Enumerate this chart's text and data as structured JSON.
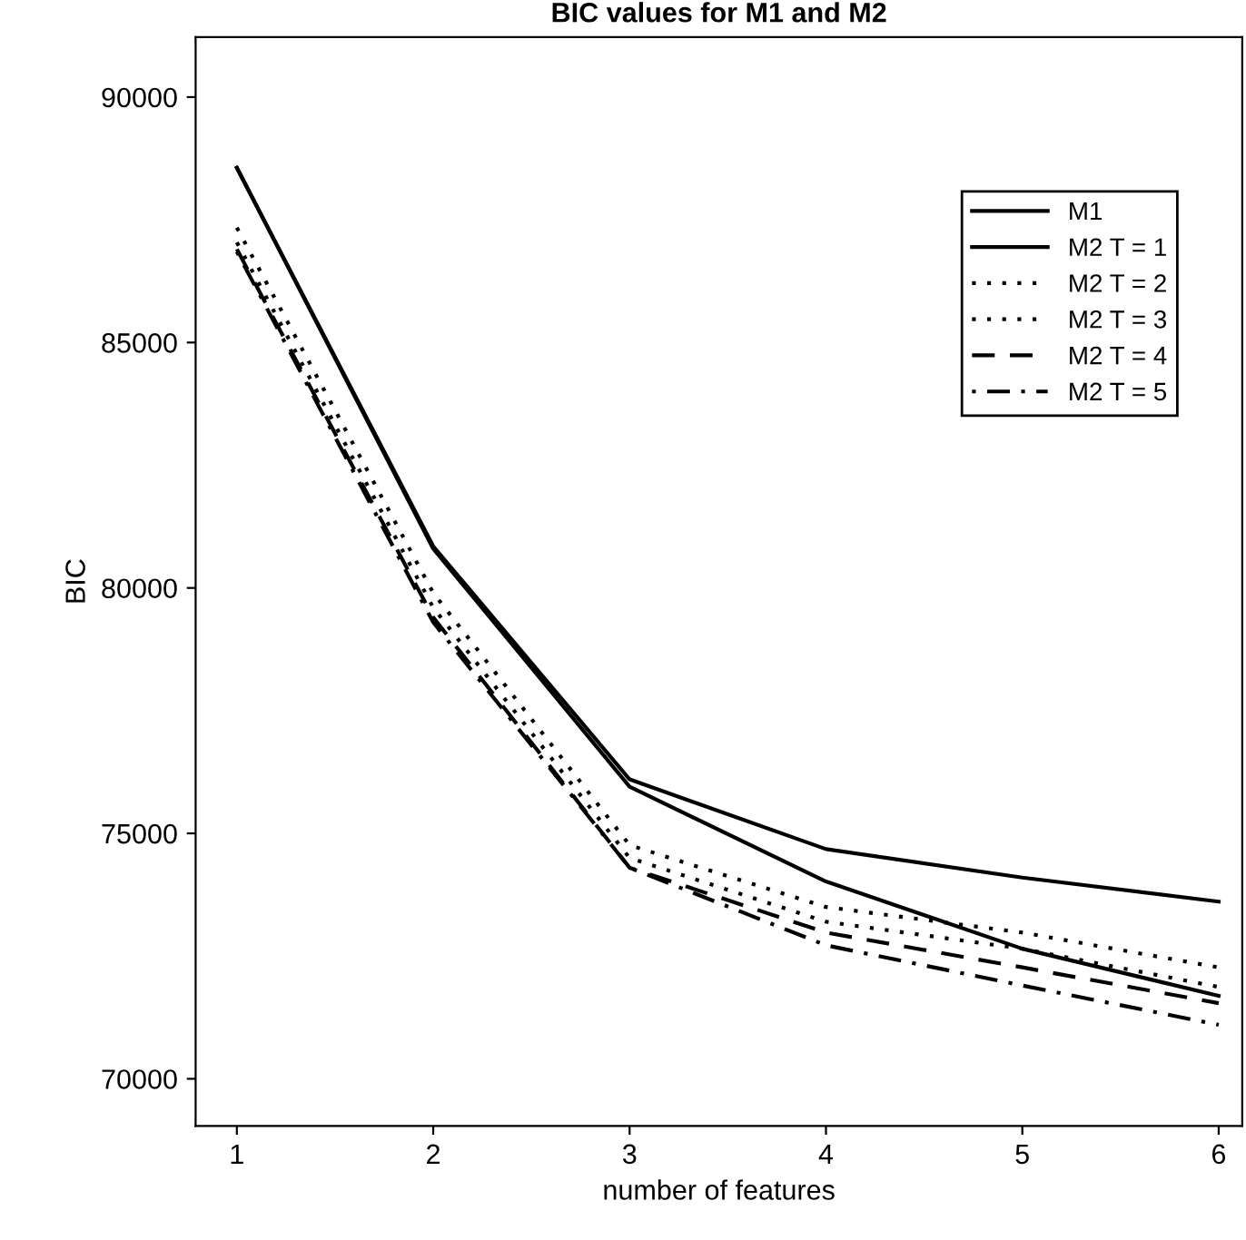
{
  "chart_data": {
    "type": "line",
    "title": "BIC values for M1 and M2",
    "xlabel": "number of features",
    "ylabel": "BIC",
    "x": [
      1,
      2,
      3,
      4,
      5,
      6
    ],
    "series": [
      {
        "name": "M1",
        "color": "#000000",
        "line_style": "solid",
        "values": [
          88560,
          80850,
          76100,
          74680,
          74100,
          73610
        ]
      },
      {
        "name": "M2 T = 1",
        "color": "#000000",
        "line_style": "solid",
        "values": [
          88560,
          80800,
          75950,
          74020,
          72650,
          71690
        ]
      },
      {
        "name": "M2 T = 2",
        "color": "#000000",
        "line_style": "dotted",
        "values": [
          87340,
          79900,
          74760,
          73500,
          72980,
          72270
        ]
      },
      {
        "name": "M2 T = 3",
        "color": "#000000",
        "line_style": "dotted",
        "values": [
          87040,
          79600,
          74500,
          73200,
          72650,
          71870
        ]
      },
      {
        "name": "M2 T = 4",
        "color": "#000000",
        "line_style": "dashed",
        "values": [
          86900,
          79400,
          74300,
          72980,
          72270,
          71540
        ]
      },
      {
        "name": "M2 T = 5",
        "color": "#000000",
        "line_style": "dashdot",
        "values": [
          86850,
          79300,
          74300,
          72720,
          71900,
          71100
        ]
      }
    ],
    "xlim": [
      0.79,
      6.12
    ],
    "ylim": [
      69040,
      91220
    ],
    "xticks": [
      1,
      2,
      3,
      4,
      5,
      6
    ],
    "yticks": [
      70000,
      75000,
      80000,
      85000,
      90000
    ],
    "grid": false,
    "legend": "top right"
  }
}
